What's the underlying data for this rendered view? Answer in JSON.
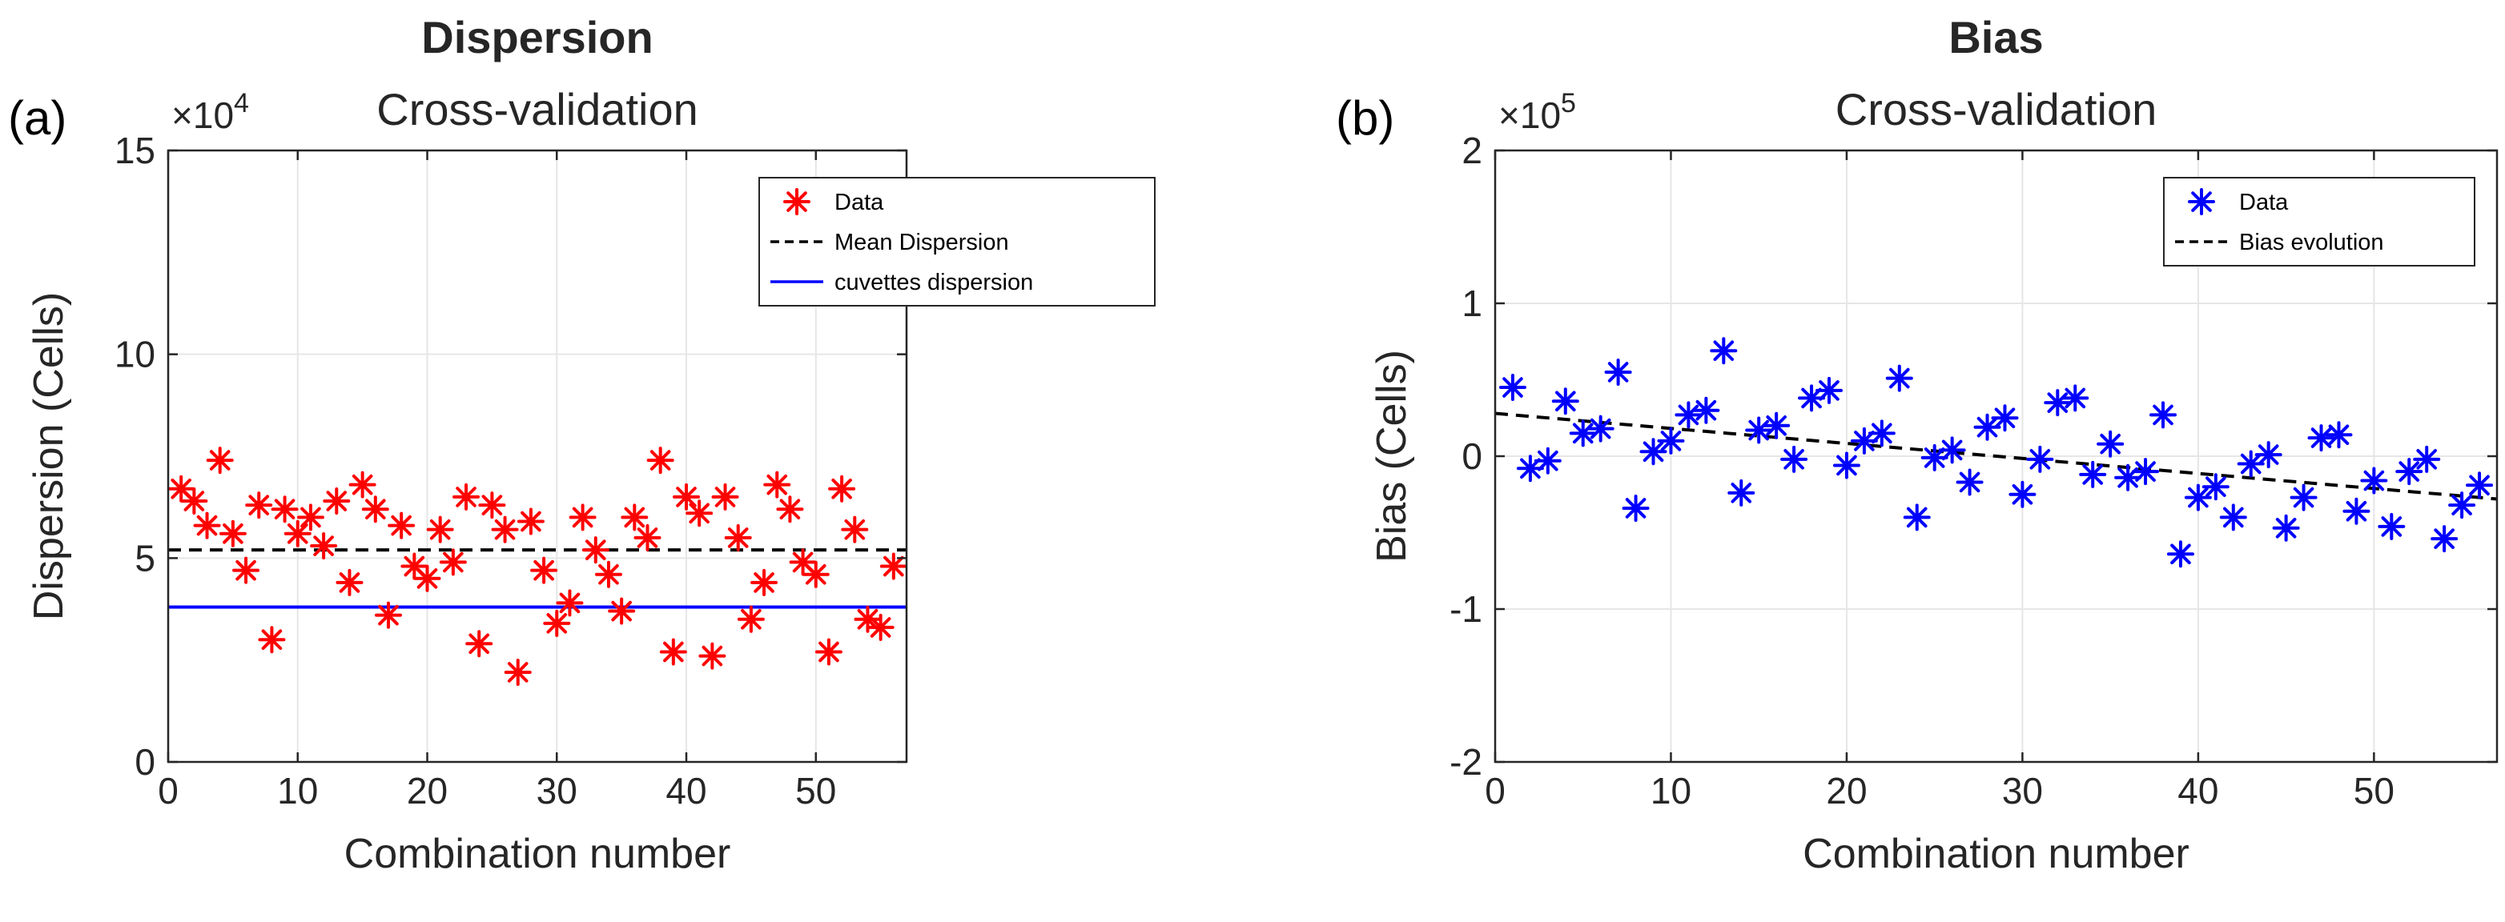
{
  "chart_data": [
    {
      "type": "scatter",
      "panel_label": "(a)",
      "title": "Dispersion",
      "subtitle": "Cross-validation",
      "xlabel": "Combination number",
      "ylabel": "Dispersion (Cells)",
      "exponent_label": "×10",
      "exponent_power": "4",
      "xlim": [
        0,
        57
      ],
      "ylim": [
        0,
        15
      ],
      "xticks": [
        0,
        10,
        20,
        30,
        40,
        50
      ],
      "yticks": [
        0,
        5,
        10,
        15
      ],
      "grid": true,
      "legend_position": "top-right",
      "series": [
        {
          "name": "Data",
          "kind": "marker-asterisk",
          "color": "#ff0000",
          "x": [
            1,
            2,
            3,
            4,
            5,
            6,
            7,
            8,
            9,
            10,
            11,
            12,
            13,
            14,
            15,
            16,
            17,
            18,
            19,
            20,
            21,
            22,
            23,
            24,
            25,
            26,
            27,
            28,
            29,
            30,
            31,
            32,
            33,
            34,
            35,
            36,
            37,
            38,
            39,
            40,
            41,
            42,
            43,
            44,
            45,
            46,
            47,
            48,
            49,
            50,
            51,
            52,
            53,
            54,
            55,
            56
          ],
          "y": [
            6.7,
            6.4,
            5.8,
            7.4,
            5.6,
            4.7,
            6.3,
            3.0,
            6.2,
            5.6,
            6.0,
            5.3,
            6.4,
            4.4,
            6.8,
            6.2,
            3.6,
            5.8,
            4.8,
            4.5,
            5.7,
            4.9,
            6.5,
            2.9,
            6.3,
            5.7,
            2.2,
            5.9,
            4.7,
            3.4,
            3.9,
            6.0,
            5.2,
            4.6,
            3.7,
            6.0,
            5.5,
            7.4,
            2.7,
            6.5,
            6.1,
            2.6,
            6.5,
            5.5,
            3.5,
            4.4,
            6.8,
            6.2,
            4.9,
            4.6,
            2.7,
            6.7,
            5.7,
            3.5,
            3.3,
            4.8
          ]
        },
        {
          "name": "Mean Dispersion",
          "kind": "hline-dashed",
          "color": "#000000",
          "y": 5.2
        },
        {
          "name": "cuvettes dispersion",
          "kind": "hline-solid",
          "color": "#0000ff",
          "y": 3.8
        }
      ]
    },
    {
      "type": "scatter",
      "panel_label": "(b)",
      "title": "Bias",
      "subtitle": "Cross-validation",
      "xlabel": "Combination number",
      "ylabel": "Bias (Cells)",
      "exponent_label": "×10",
      "exponent_power": "5",
      "xlim": [
        0,
        57
      ],
      "ylim": [
        -2,
        2
      ],
      "xticks": [
        0,
        10,
        20,
        30,
        40,
        50
      ],
      "yticks": [
        -2,
        -1,
        0,
        1,
        2
      ],
      "grid": true,
      "legend_position": "top-right",
      "series": [
        {
          "name": "Data",
          "kind": "marker-asterisk",
          "color": "#0000ff",
          "x": [
            1,
            2,
            3,
            4,
            5,
            6,
            7,
            8,
            9,
            10,
            11,
            12,
            13,
            14,
            15,
            16,
            17,
            18,
            19,
            20,
            21,
            22,
            23,
            24,
            25,
            26,
            27,
            28,
            29,
            30,
            31,
            32,
            33,
            34,
            35,
            36,
            37,
            38,
            39,
            40,
            41,
            42,
            43,
            44,
            45,
            46,
            47,
            48,
            49,
            50,
            51,
            52,
            53,
            54,
            55,
            56
          ],
          "y": [
            0.45,
            -0.08,
            -0.03,
            0.36,
            0.15,
            0.18,
            0.55,
            -0.34,
            0.03,
            0.1,
            0.27,
            0.3,
            0.69,
            -0.24,
            0.17,
            0.2,
            -0.02,
            0.38,
            0.43,
            -0.06,
            0.1,
            0.15,
            0.51,
            -0.4,
            -0.01,
            0.04,
            -0.17,
            0.19,
            0.25,
            -0.25,
            -0.02,
            0.35,
            0.38,
            -0.12,
            0.08,
            -0.14,
            -0.1,
            0.27,
            -0.64,
            -0.27,
            -0.2,
            -0.4,
            -0.05,
            0.01,
            -0.47,
            -0.27,
            0.12,
            0.14,
            -0.36,
            -0.16,
            -0.46,
            -0.1,
            -0.02,
            -0.54,
            -0.32,
            -0.19
          ]
        },
        {
          "name": "Bias evolution",
          "kind": "line-dashed",
          "color": "#000000",
          "x": [
            0,
            57
          ],
          "y": [
            0.28,
            -0.28
          ]
        }
      ]
    }
  ]
}
